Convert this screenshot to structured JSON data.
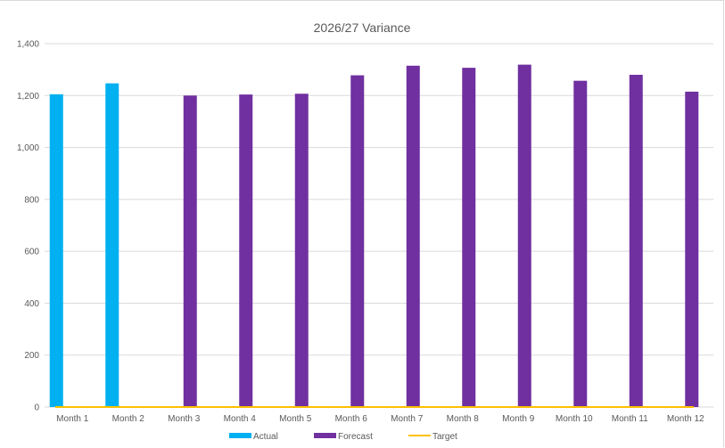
{
  "chart_data": {
    "type": "bar",
    "title": "2026/27 Variance",
    "xlabel": "",
    "ylabel": "",
    "categories": [
      "Month 1",
      "Month 2",
      "Month 3",
      "Month 4",
      "Month 5",
      "Month 6",
      "Month 7",
      "Month 8",
      "Month 9",
      "Month 10",
      "Month 11",
      "Month 12"
    ],
    "ylim": [
      0,
      1400
    ],
    "yticks": [
      0,
      200,
      400,
      600,
      800,
      1000,
      1200,
      1400
    ],
    "ytick_labels": [
      "0",
      "200",
      "400",
      "600",
      "800",
      "1,000",
      "1,200",
      "1,400"
    ],
    "grid": true,
    "legend_position": "bottom",
    "series": [
      {
        "name": "Actual",
        "kind": "bar",
        "color": "#00b0f0",
        "values": [
          1205,
          1247,
          0,
          0,
          0,
          0,
          0,
          0,
          0,
          0,
          0,
          0
        ]
      },
      {
        "name": "Forecast",
        "kind": "bar",
        "color": "#7030a0",
        "values": [
          0,
          0,
          1200,
          1204,
          1207,
          1278,
          1315,
          1307,
          1319,
          1257,
          1280,
          1215
        ]
      },
      {
        "name": "Target",
        "kind": "line",
        "color": "#ffc000",
        "values": [
          0,
          0,
          0,
          0,
          0,
          0,
          0,
          0,
          0,
          0,
          0,
          0
        ]
      }
    ]
  }
}
